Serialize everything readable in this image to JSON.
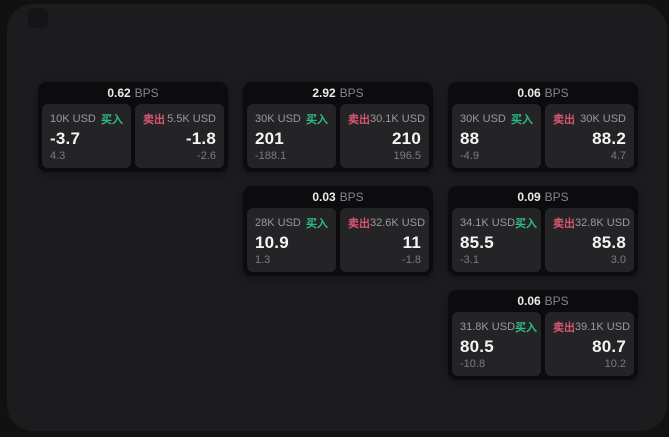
{
  "colors": {
    "buy_green": "#2ebd85",
    "sell_red": "#d8566f",
    "panel_background": "#1c1c1e",
    "card_background": "#0c0c0e",
    "tile_background": "#242427"
  },
  "cards": [
    {
      "bps": "0.62",
      "unit": "BPS",
      "buy": {
        "amount": "10K USD",
        "side": "买入",
        "value": "-3.7",
        "delta": "4.3"
      },
      "sell": {
        "side": "卖出",
        "amount": "5.5K USD",
        "value": "-1.8",
        "delta": "-2.6"
      }
    },
    {
      "bps": "2.92",
      "unit": "BPS",
      "buy": {
        "amount": "30K USD",
        "side": "买入",
        "value": "201",
        "delta": "-188.1"
      },
      "sell": {
        "side": "卖出",
        "amount": "30.1K USD",
        "value": "210",
        "delta": "196.5"
      }
    },
    {
      "bps": "0.06",
      "unit": "BPS",
      "buy": {
        "amount": "30K USD",
        "side": "买入",
        "value": "88",
        "delta": "-4.9"
      },
      "sell": {
        "side": "卖出",
        "amount": "30K USD",
        "value": "88.2",
        "delta": "4.7"
      }
    },
    {
      "bps": "0.03",
      "unit": "BPS",
      "buy": {
        "amount": "28K USD",
        "side": "买入",
        "value": "10.9",
        "delta": "1.3"
      },
      "sell": {
        "side": "卖出",
        "amount": "32.6K USD",
        "value": "11",
        "delta": "-1.8"
      }
    },
    {
      "bps": "0.09",
      "unit": "BPS",
      "buy": {
        "amount": "34.1K USD",
        "side": "买入",
        "value": "85.5",
        "delta": "-3.1"
      },
      "sell": {
        "side": "卖出",
        "amount": "32.8K USD",
        "value": "85.8",
        "delta": "3.0"
      }
    },
    {
      "bps": "0.06",
      "unit": "BPS",
      "buy": {
        "amount": "31.8K USD",
        "side": "买入",
        "value": "80.5",
        "delta": "-10.8"
      },
      "sell": {
        "side": "卖出",
        "amount": "39.1K USD",
        "value": "80.7",
        "delta": "10.2"
      }
    }
  ]
}
